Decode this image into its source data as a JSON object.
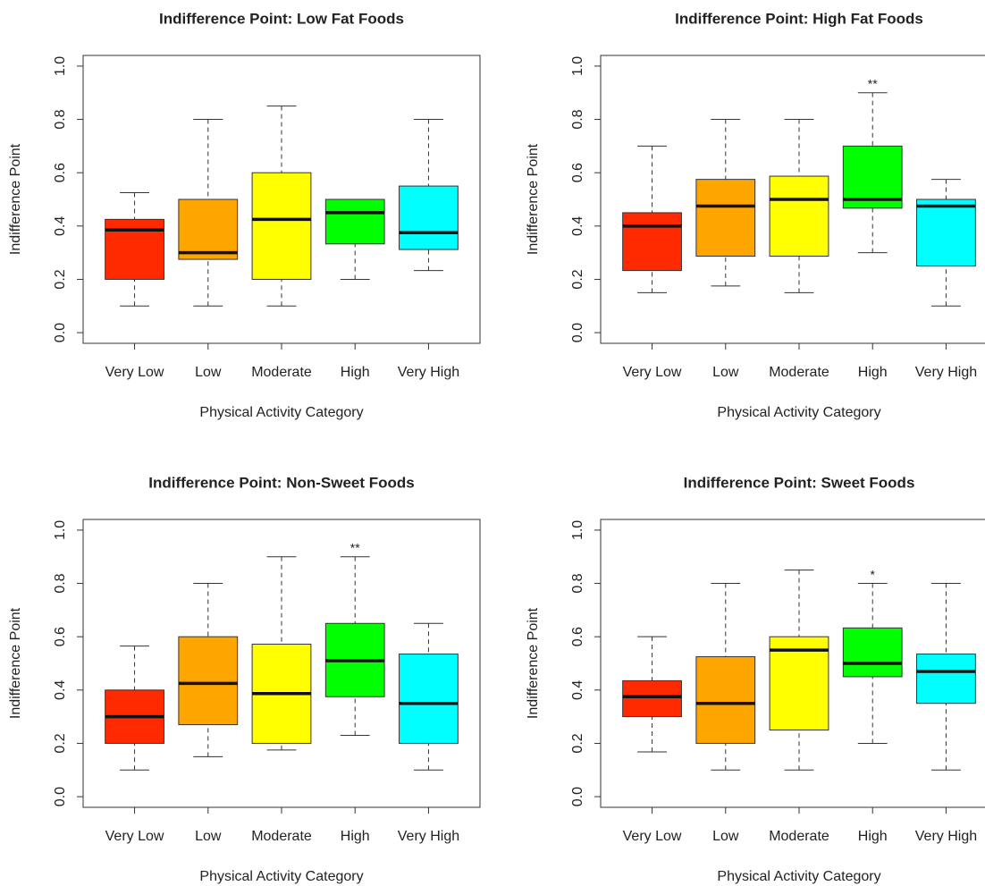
{
  "chart_data": [
    {
      "type": "box",
      "title": "Indifference Point: Low Fat Foods",
      "xlabel": "Physical Activity Category",
      "ylabel": "Indifference Point",
      "categories": [
        "Very Low",
        "Low",
        "Moderate",
        "High",
        "Very High"
      ],
      "colors": [
        "#ff2a00",
        "#ffa500",
        "#ffff00",
        "#00ff00",
        "#00ffff"
      ],
      "boxes": [
        {
          "low": 0.1,
          "q1": 0.2,
          "median": 0.385,
          "q3": 0.425,
          "high": 0.525
        },
        {
          "low": 0.1,
          "q1": 0.275,
          "median": 0.3,
          "q3": 0.5,
          "high": 0.8
        },
        {
          "low": 0.1,
          "q1": 0.2,
          "median": 0.425,
          "q3": 0.6,
          "high": 0.85
        },
        {
          "low": 0.2,
          "q1": 0.333,
          "median": 0.45,
          "q3": 0.5,
          "high": 0.5
        },
        {
          "low": 0.233,
          "q1": 0.312,
          "median": 0.375,
          "q3": 0.55,
          "high": 0.8
        }
      ],
      "annotations": [
        null,
        null,
        null,
        null,
        null
      ],
      "ylim": [
        0,
        1
      ],
      "yticks": [
        {
          "value": 0,
          "label": "0.0"
        },
        0.2,
        0.4,
        0.6,
        0.8,
        {
          "value": 1,
          "label": "1.0"
        }
      ]
    },
    {
      "type": "box",
      "title": "Indifference Point: High Fat Foods",
      "xlabel": "Physical Activity Category",
      "ylabel": "Indifference Point",
      "categories": [
        "Very Low",
        "Low",
        "Moderate",
        "High",
        "Very High"
      ],
      "colors": [
        "#ff2a00",
        "#ffa500",
        "#ffff00",
        "#00ff00",
        "#00ffff"
      ],
      "boxes": [
        {
          "low": 0.15,
          "q1": 0.233,
          "median": 0.4,
          "q3": 0.45,
          "high": 0.7
        },
        {
          "low": 0.175,
          "q1": 0.287,
          "median": 0.475,
          "q3": 0.575,
          "high": 0.8
        },
        {
          "low": 0.15,
          "q1": 0.287,
          "median": 0.5,
          "q3": 0.587,
          "high": 0.8
        },
        {
          "low": 0.3,
          "q1": 0.467,
          "median": 0.5,
          "q3": 0.7,
          "high": 0.9
        },
        {
          "low": 0.1,
          "q1": 0.25,
          "median": 0.475,
          "q3": 0.5,
          "high": 0.575
        }
      ],
      "annotations": [
        null,
        null,
        null,
        "**",
        null
      ],
      "ylim": [
        0,
        1
      ],
      "yticks": [
        {
          "value": 0,
          "label": "0.0"
        },
        0.2,
        0.4,
        0.6,
        0.8,
        {
          "value": 1,
          "label": "1.0"
        }
      ]
    },
    {
      "type": "box",
      "title": "Indifference Point: Non-Sweet Foods",
      "xlabel": "Physical Activity Category",
      "ylabel": "Indifference Point",
      "categories": [
        "Very Low",
        "Low",
        "Moderate",
        "High",
        "Very High"
      ],
      "colors": [
        "#ff2a00",
        "#ffa500",
        "#ffff00",
        "#00ff00",
        "#00ffff"
      ],
      "boxes": [
        {
          "low": 0.1,
          "q1": 0.2,
          "median": 0.3,
          "q3": 0.4,
          "high": 0.565
        },
        {
          "low": 0.15,
          "q1": 0.27,
          "median": 0.425,
          "q3": 0.6,
          "high": 0.8
        },
        {
          "low": 0.175,
          "q1": 0.2,
          "median": 0.387,
          "q3": 0.572,
          "high": 0.9
        },
        {
          "low": 0.23,
          "q1": 0.375,
          "median": 0.51,
          "q3": 0.65,
          "high": 0.9
        },
        {
          "low": 0.1,
          "q1": 0.2,
          "median": 0.35,
          "q3": 0.535,
          "high": 0.65
        }
      ],
      "annotations": [
        null,
        null,
        null,
        "**",
        null
      ],
      "ylim": [
        0,
        1
      ],
      "yticks": [
        {
          "value": 0,
          "label": "0.0"
        },
        0.2,
        0.4,
        0.6,
        0.8,
        {
          "value": 1,
          "label": "1.0"
        }
      ]
    },
    {
      "type": "box",
      "title": "Indifference Point: Sweet Foods",
      "xlabel": "Physical Activity Category",
      "ylabel": "Indifference Point",
      "categories": [
        "Very Low",
        "Low",
        "Moderate",
        "High",
        "Very High"
      ],
      "colors": [
        "#ff2a00",
        "#ffa500",
        "#ffff00",
        "#00ff00",
        "#00ffff"
      ],
      "boxes": [
        {
          "low": 0.168,
          "q1": 0.3,
          "median": 0.375,
          "q3": 0.435,
          "high": 0.6
        },
        {
          "low": 0.1,
          "q1": 0.2,
          "median": 0.35,
          "q3": 0.525,
          "high": 0.8
        },
        {
          "low": 0.1,
          "q1": 0.25,
          "median": 0.55,
          "q3": 0.6,
          "high": 0.85
        },
        {
          "low": 0.2,
          "q1": 0.45,
          "median": 0.5,
          "q3": 0.633,
          "high": 0.8
        },
        {
          "low": 0.1,
          "q1": 0.35,
          "median": 0.47,
          "q3": 0.535,
          "high": 0.8
        }
      ],
      "annotations": [
        null,
        null,
        null,
        "*",
        null
      ],
      "ylim": [
        0,
        1
      ],
      "yticks": [
        {
          "value": 0,
          "label": "0.0"
        },
        0.2,
        0.4,
        0.6,
        0.8,
        {
          "value": 1,
          "label": "1.0"
        }
      ]
    }
  ]
}
